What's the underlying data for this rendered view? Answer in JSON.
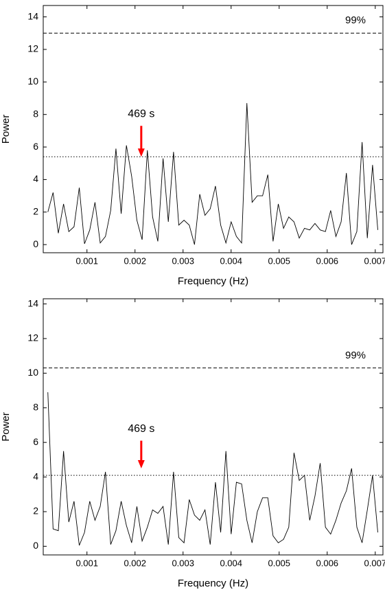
{
  "chart_data": [
    {
      "type": "line",
      "xlabel": "Frequency (Hz)",
      "ylabel": "Power",
      "x": [
        0.000186,
        0.000295,
        0.000404,
        0.000513,
        0.000622,
        0.000731,
        0.00084,
        0.000949,
        0.001058,
        0.001167,
        0.001276,
        0.001385,
        0.001494,
        0.001603,
        0.001712,
        0.001821,
        0.00193,
        0.002039,
        0.002148,
        0.002257,
        0.002366,
        0.002475,
        0.002584,
        0.002693,
        0.002802,
        0.002911,
        0.00302,
        0.003129,
        0.003238,
        0.003347,
        0.003456,
        0.003565,
        0.003674,
        0.003783,
        0.003892,
        0.004001,
        0.00411,
        0.004219,
        0.004328,
        0.004437,
        0.004546,
        0.004655,
        0.004764,
        0.004873,
        0.004982,
        0.005091,
        0.0052,
        0.005309,
        0.005418,
        0.005527,
        0.005636,
        0.005745,
        0.005854,
        0.005963,
        0.006072,
        0.006181,
        0.00629,
        0.006399,
        0.006508,
        0.006617,
        0.006726,
        0.006835,
        0.006944,
        0.007053
      ],
      "series": [
        {
          "color": "#000000",
          "values": [
            2.0,
            3.2,
            0.7,
            2.5,
            0.8,
            1.1,
            3.5,
            0.05,
            0.9,
            2.6,
            0.1,
            0.5,
            2.1,
            5.9,
            1.9,
            6.1,
            4.2,
            1.5,
            0.3,
            5.8,
            1.7,
            0.2,
            5.3,
            1.4,
            5.7,
            1.2,
            1.5,
            1.2,
            0.0,
            3.1,
            1.8,
            2.2,
            3.6,
            1.2,
            0.1,
            1.4,
            0.5,
            0.1,
            8.7,
            2.6,
            3.0,
            3.0,
            4.3,
            0.2,
            2.5,
            1.0,
            1.7,
            1.4,
            0.4,
            1.0,
            0.9,
            1.3,
            0.9,
            0.8,
            2.1,
            0.5,
            1.4,
            4.4,
            0.0,
            0.8,
            6.3,
            0.4,
            4.9,
            0.9
          ]
        }
      ],
      "xlim": [
        9e-05,
        0.00716
      ],
      "ylim": [
        -0.5,
        14.7
      ],
      "xticks": [
        0.001,
        0.002,
        0.003,
        0.004,
        0.005,
        0.006,
        0.007
      ],
      "yticks": [
        0,
        2,
        4,
        6,
        8,
        10,
        12,
        14
      ],
      "hlines": [
        {
          "value": 13.0,
          "label": "99%",
          "style": "dashed"
        },
        {
          "value": 5.4,
          "style": "dotted"
        }
      ],
      "annotations": [
        {
          "text": "469 s",
          "x": 0.00213,
          "y_start": 7.3,
          "y_end": 5.4,
          "color": "#ff0000"
        }
      ]
    },
    {
      "type": "line",
      "xlabel": "Frequency (Hz)",
      "ylabel": "Power",
      "x": [
        0.000186,
        0.000295,
        0.000404,
        0.000513,
        0.000622,
        0.000731,
        0.00084,
        0.000949,
        0.001058,
        0.001167,
        0.001276,
        0.001385,
        0.001494,
        0.001603,
        0.001712,
        0.001821,
        0.00193,
        0.002039,
        0.002148,
        0.002257,
        0.002366,
        0.002475,
        0.002584,
        0.002693,
        0.002802,
        0.002911,
        0.00302,
        0.003129,
        0.003238,
        0.003347,
        0.003456,
        0.003565,
        0.003674,
        0.003783,
        0.003892,
        0.004001,
        0.00411,
        0.004219,
        0.004328,
        0.004437,
        0.004546,
        0.004655,
        0.004764,
        0.004873,
        0.004982,
        0.005091,
        0.0052,
        0.005309,
        0.005418,
        0.005527,
        0.005636,
        0.005745,
        0.005854,
        0.005963,
        0.006072,
        0.006181,
        0.00629,
        0.006399,
        0.006508,
        0.006617,
        0.006726,
        0.006835,
        0.006944,
        0.007053
      ],
      "series": [
        {
          "color": "#000000",
          "values": [
            8.9,
            1.0,
            0.9,
            5.5,
            1.4,
            2.6,
            0.05,
            0.8,
            2.6,
            1.5,
            2.3,
            4.3,
            0.1,
            0.9,
            2.6,
            1.2,
            0.2,
            2.3,
            0.3,
            1.1,
            2.1,
            1.9,
            2.3,
            0.1,
            4.3,
            0.5,
            0.2,
            2.7,
            1.8,
            1.5,
            2.1,
            0.1,
            3.7,
            0.8,
            5.5,
            0.7,
            3.7,
            3.6,
            1.5,
            0.2,
            2.0,
            2.8,
            2.8,
            0.6,
            0.2,
            0.4,
            1.1,
            5.4,
            3.8,
            4.1,
            1.5,
            2.9,
            4.8,
            1.1,
            0.7,
            1.5,
            2.5,
            3.2,
            4.5,
            1.1,
            0.2,
            2.1,
            4.1,
            0.8
          ]
        }
      ],
      "xlim": [
        9e-05,
        0.00716
      ],
      "ylim": [
        -0.5,
        14.3
      ],
      "xticks": [
        0.001,
        0.002,
        0.003,
        0.004,
        0.005,
        0.006,
        0.007
      ],
      "yticks": [
        0,
        2,
        4,
        6,
        8,
        10,
        12,
        14
      ],
      "hlines": [
        {
          "value": 10.3,
          "label": "99%",
          "style": "dashed"
        },
        {
          "value": 4.1,
          "style": "dotted"
        }
      ],
      "annotations": [
        {
          "text": "469 s",
          "x": 0.00213,
          "y_start": 6.1,
          "y_end": 4.5,
          "color": "#ff0000"
        }
      ]
    }
  ]
}
